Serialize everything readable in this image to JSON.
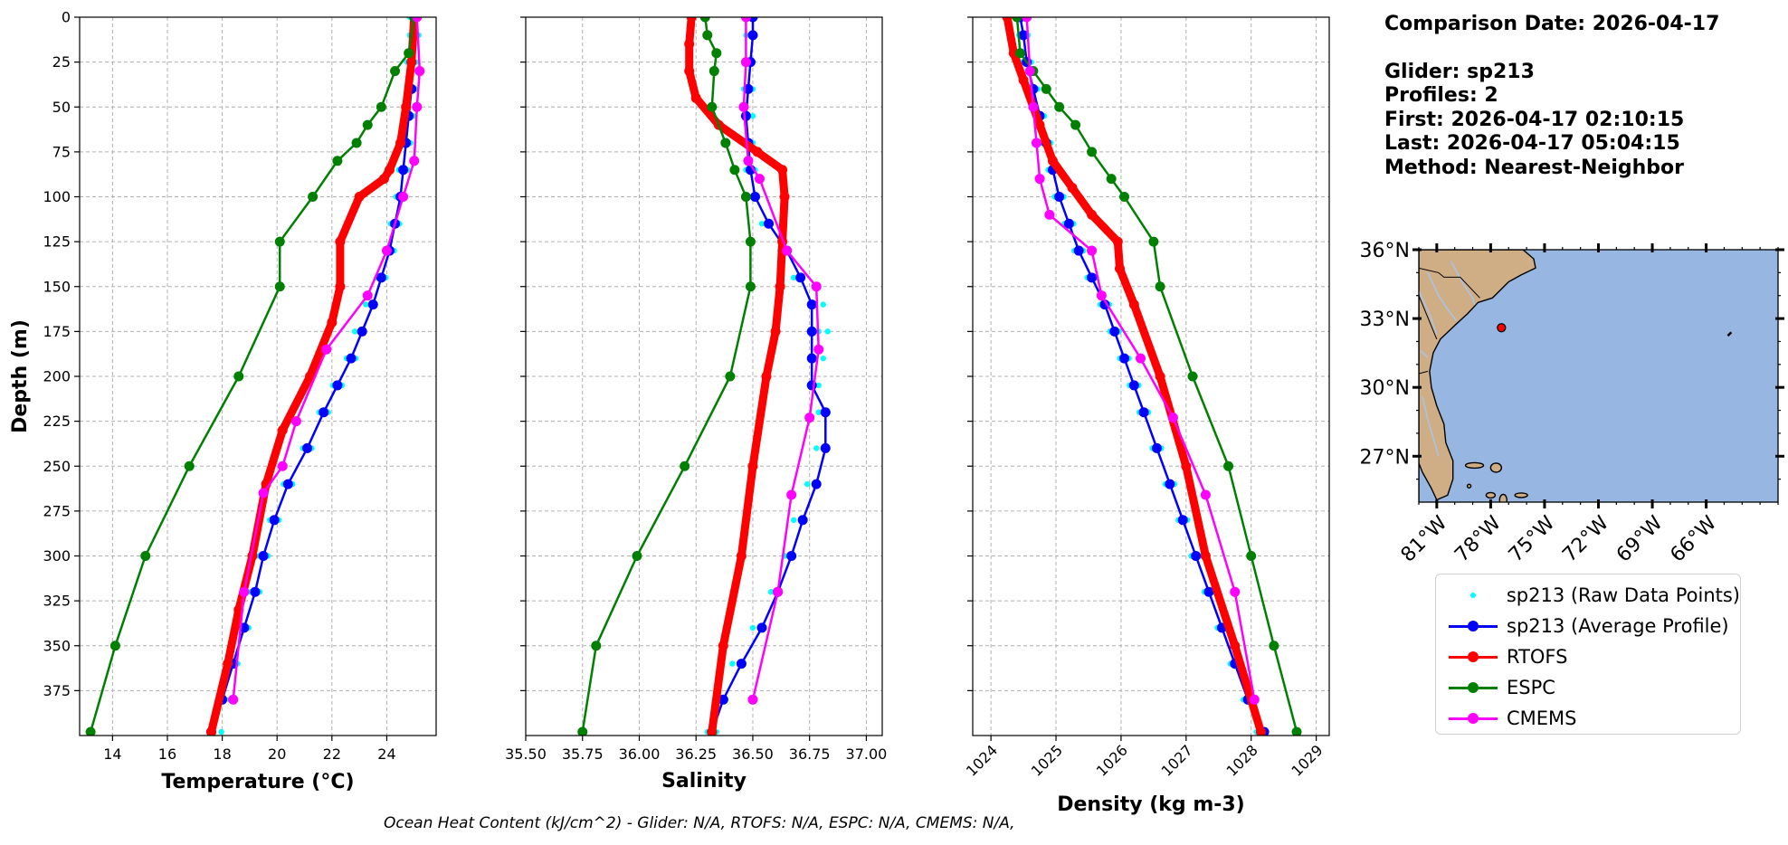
{
  "chart_data": [
    {
      "type": "line",
      "xlabel": "Temperature (°C)",
      "ylabel": "Depth (m)",
      "xlim": [
        12.8,
        25.8
      ],
      "ylim": [
        400,
        0
      ],
      "xticks": [
        14,
        16,
        18,
        20,
        22,
        24
      ],
      "yticks": [
        0,
        25,
        50,
        75,
        100,
        125,
        150,
        175,
        200,
        225,
        250,
        275,
        300,
        325,
        350,
        375
      ],
      "grid": true,
      "series": [
        {
          "name": "sp213 (Raw Data Points)",
          "style": "scatter",
          "x": [
            25.0,
            25.0,
            24.9,
            24.9,
            24.8,
            24.7,
            24.6,
            24.5,
            24.3,
            24.1,
            23.8,
            23.4,
            23.0,
            22.7,
            22.2,
            21.7,
            21.1,
            20.4,
            19.9,
            19.5,
            19.2,
            18.8,
            18.4,
            18.1,
            17.8
          ],
          "y": [
            0,
            10,
            25,
            40,
            55,
            70,
            85,
            100,
            115,
            130,
            145,
            160,
            175,
            190,
            205,
            220,
            240,
            260,
            280,
            300,
            320,
            340,
            360,
            380,
            398
          ]
        },
        {
          "name": "sp213 (Average Profile)",
          "style": "line-markers",
          "x": [
            25.0,
            25.0,
            24.9,
            24.9,
            24.8,
            24.7,
            24.6,
            24.5,
            24.3,
            24.1,
            23.8,
            23.5,
            23.1,
            22.7,
            22.2,
            21.7,
            21.1,
            20.4,
            19.9,
            19.5,
            19.2,
            18.8,
            18.4,
            18.0,
            17.6
          ],
          "y": [
            0,
            10,
            25,
            40,
            55,
            70,
            85,
            100,
            115,
            130,
            145,
            160,
            175,
            190,
            205,
            220,
            240,
            260,
            280,
            300,
            320,
            340,
            360,
            380,
            398
          ]
        },
        {
          "name": "RTOFS",
          "style": "line-markers",
          "x": [
            25.0,
            24.9,
            24.7,
            24.5,
            24.1,
            23.9,
            23.0,
            22.3,
            22.3,
            22.0,
            21.2,
            20.2,
            19.6,
            19.1,
            18.6,
            18.2,
            17.6
          ],
          "y": [
            0,
            25,
            50,
            70,
            85,
            90,
            100,
            125,
            150,
            170,
            200,
            230,
            260,
            300,
            330,
            360,
            398
          ]
        },
        {
          "name": "ESPC",
          "style": "line-markers",
          "x": [
            25.0,
            24.8,
            24.3,
            23.8,
            23.3,
            22.9,
            22.2,
            21.3,
            20.1,
            20.1,
            18.6,
            16.8,
            15.2,
            14.1,
            13.2
          ],
          "y": [
            0,
            20,
            30,
            50,
            60,
            70,
            80,
            100,
            125,
            150,
            200,
            250,
            300,
            350,
            398
          ]
        },
        {
          "name": "CMEMS",
          "style": "line-markers",
          "x": [
            25.1,
            25.2,
            25.1,
            25.0,
            24.6,
            24.0,
            23.3,
            21.8,
            20.7,
            20.2,
            19.5,
            18.8,
            18.4
          ],
          "y": [
            0,
            30,
            50,
            80,
            100,
            130,
            155,
            185,
            225,
            250,
            265,
            320,
            380
          ]
        }
      ]
    },
    {
      "type": "line",
      "xlabel": "Salinity",
      "ylim": [
        400,
        0
      ],
      "xlim": [
        35.5,
        37.07
      ],
      "xticks": [
        35.5,
        35.75,
        36.0,
        36.25,
        36.5,
        36.75,
        37.0
      ],
      "grid": true,
      "series": [
        {
          "name": "sp213 (Raw Data Points)",
          "style": "scatter",
          "x": [
            36.49,
            36.49,
            36.48,
            36.48,
            36.48,
            36.48,
            36.49,
            36.5,
            36.56,
            36.64,
            36.7,
            36.79,
            36.81,
            36.79,
            36.77,
            36.81,
            36.8,
            36.76,
            36.7,
            36.66,
            36.6,
            36.52,
            36.43,
            36.36,
            36.32
          ],
          "y": [
            0,
            10,
            25,
            40,
            55,
            70,
            85,
            100,
            115,
            130,
            145,
            160,
            175,
            190,
            205,
            220,
            240,
            260,
            280,
            300,
            320,
            340,
            360,
            380,
            398
          ]
        },
        {
          "name": "sp213 (Average Profile)",
          "style": "line-markers",
          "x": [
            36.5,
            36.5,
            36.49,
            36.48,
            36.47,
            36.48,
            36.49,
            36.51,
            36.57,
            36.65,
            36.71,
            36.76,
            36.76,
            36.76,
            36.76,
            36.82,
            36.82,
            36.78,
            36.72,
            36.67,
            36.61,
            36.54,
            36.45,
            36.37,
            36.32
          ],
          "y": [
            0,
            10,
            25,
            40,
            55,
            70,
            85,
            100,
            115,
            130,
            145,
            160,
            175,
            190,
            205,
            220,
            240,
            260,
            280,
            300,
            320,
            340,
            360,
            380,
            398
          ]
        },
        {
          "name": "RTOFS",
          "style": "line-markers",
          "x": [
            36.23,
            36.22,
            36.22,
            36.25,
            36.35,
            36.52,
            36.63,
            36.64,
            36.63,
            36.62,
            36.6,
            36.56,
            36.5,
            36.45,
            36.37,
            36.32
          ],
          "y": [
            0,
            15,
            30,
            45,
            60,
            75,
            85,
            100,
            125,
            150,
            175,
            200,
            250,
            300,
            350,
            398
          ]
        },
        {
          "name": "ESPC",
          "style": "line-markers",
          "x": [
            36.29,
            36.3,
            36.34,
            36.33,
            36.32,
            36.38,
            36.42,
            36.47,
            36.49,
            36.49,
            36.4,
            36.2,
            35.99,
            35.81,
            35.75
          ],
          "y": [
            0,
            10,
            20,
            30,
            50,
            70,
            85,
            100,
            125,
            150,
            200,
            250,
            300,
            350,
            398
          ]
        },
        {
          "name": "CMEMS",
          "style": "line-markers",
          "x": [
            36.47,
            36.47,
            36.46,
            36.48,
            36.53,
            36.65,
            36.78,
            36.79,
            36.75,
            36.67,
            36.61,
            36.5
          ],
          "y": [
            0,
            25,
            50,
            80,
            90,
            130,
            150,
            185,
            223,
            266,
            320,
            380
          ]
        }
      ]
    },
    {
      "type": "line",
      "xlabel": "Density (kg m-3)",
      "ylim": [
        400,
        0
      ],
      "xlim": [
        1023.72,
        1029.2
      ],
      "xticks": [
        1024,
        1025,
        1026,
        1027,
        1028,
        1029
      ],
      "grid": true,
      "series": [
        {
          "name": "sp213 (Raw Data Points)",
          "style": "scatter",
          "x": [
            1024.45,
            1024.5,
            1024.55,
            1024.65,
            1024.75,
            1024.85,
            1024.95,
            1025.05,
            1025.2,
            1025.35,
            1025.55,
            1025.75,
            1025.9,
            1026.05,
            1026.2,
            1026.35,
            1026.55,
            1026.75,
            1026.95,
            1027.15,
            1027.35,
            1027.55,
            1027.75,
            1027.95,
            1028.15
          ],
          "y": [
            0,
            10,
            25,
            40,
            55,
            70,
            85,
            100,
            115,
            130,
            145,
            160,
            175,
            190,
            205,
            220,
            240,
            260,
            280,
            300,
            320,
            340,
            360,
            380,
            398
          ]
        },
        {
          "name": "sp213 (Average Profile)",
          "style": "line-markers",
          "x": [
            1024.45,
            1024.5,
            1024.55,
            1024.65,
            1024.75,
            1024.85,
            1024.95,
            1025.05,
            1025.2,
            1025.35,
            1025.55,
            1025.75,
            1025.9,
            1026.05,
            1026.2,
            1026.35,
            1026.55,
            1026.75,
            1026.95,
            1027.15,
            1027.35,
            1027.55,
            1027.75,
            1027.95,
            1028.2
          ],
          "y": [
            0,
            10,
            25,
            40,
            55,
            70,
            85,
            100,
            115,
            130,
            145,
            160,
            175,
            190,
            205,
            220,
            240,
            260,
            280,
            300,
            320,
            340,
            360,
            380,
            398
          ]
        },
        {
          "name": "RTOFS",
          "style": "line-markers",
          "x": [
            1024.25,
            1024.35,
            1024.5,
            1024.75,
            1024.95,
            1025.25,
            1025.55,
            1025.95,
            1025.98,
            1026.2,
            1026.6,
            1027.0,
            1027.3,
            1027.75,
            1028.15
          ],
          "y": [
            0,
            20,
            35,
            60,
            80,
            95,
            110,
            125,
            140,
            160,
            200,
            250,
            300,
            350,
            398
          ]
        },
        {
          "name": "ESPC",
          "style": "line-markers",
          "x": [
            1024.4,
            1024.45,
            1024.65,
            1024.85,
            1025.05,
            1025.3,
            1025.55,
            1025.85,
            1026.05,
            1026.5,
            1026.6,
            1027.1,
            1027.65,
            1028.0,
            1028.35,
            1028.7
          ],
          "y": [
            0,
            20,
            30,
            40,
            50,
            60,
            75,
            90,
            100,
            125,
            150,
            200,
            250,
            300,
            350,
            398
          ]
        },
        {
          "name": "CMEMS",
          "style": "line-markers",
          "x": [
            1024.55,
            1024.6,
            1024.65,
            1024.7,
            1024.75,
            1024.9,
            1025.55,
            1025.7,
            1026.3,
            1026.8,
            1027.3,
            1027.75,
            1028.05
          ],
          "y": [
            0,
            30,
            50,
            70,
            90,
            110,
            130,
            155,
            190,
            223,
            266,
            320,
            380
          ]
        }
      ]
    }
  ],
  "legend": [
    {
      "label": "sp213 (Raw Data Points)",
      "color": "#00ffff",
      "kind": "dot"
    },
    {
      "label": "sp213 (Average Profile)",
      "color": "#0000ff",
      "kind": "line-marker"
    },
    {
      "label": "RTOFS",
      "color": "#ff0000",
      "kind": "line-marker"
    },
    {
      "label": "ESPC",
      "color": "#008000",
      "kind": "line-marker"
    },
    {
      "label": "CMEMS",
      "color": "#ff00ff",
      "kind": "line-marker"
    }
  ],
  "info": {
    "comparison_date": "Comparison Date: 2026-04-17",
    "glider": "Glider: sp213",
    "profiles": "Profiles: 2",
    "first": "First: 2026-04-17 02:10:15",
    "last": "Last: 2026-04-17 05:04:15",
    "method": "Method: Nearest-Neighbor"
  },
  "map": {
    "lon_range": [
      -82,
      -62
    ],
    "lat_range": [
      25,
      36
    ],
    "lat_ticks": [
      {
        "value": 36,
        "label": "36°N"
      },
      {
        "value": 33,
        "label": "33°N"
      },
      {
        "value": 30,
        "label": "30°N"
      },
      {
        "value": 27,
        "label": "27°N"
      }
    ],
    "lon_ticks": [
      {
        "value": -81,
        "label": "81°W"
      },
      {
        "value": -78,
        "label": "78°W"
      },
      {
        "value": -75,
        "label": "75°W"
      },
      {
        "value": -72,
        "label": "72°W"
      },
      {
        "value": -69,
        "label": "69°W"
      },
      {
        "value": -66,
        "label": "66°W"
      }
    ],
    "glider_position": {
      "lon": -77.4,
      "lat": 32.6
    },
    "ocean_color": "#98b6e2",
    "land_color": "#cfad85"
  },
  "footer": "Ocean Heat Content (kJ/cm^2) - Glider: N/A,  RTOFS: N/A,  ESPC: N/A,  CMEMS: N/A,"
}
